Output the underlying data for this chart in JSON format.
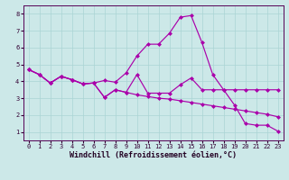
{
  "xlabel": "Windchill (Refroidissement éolien,°C)",
  "background_color": "#cce8e8",
  "grid_color": "#aad4d4",
  "line_color": "#aa00aa",
  "xlim": [
    -0.5,
    23.5
  ],
  "ylim": [
    0.5,
    8.5
  ],
  "xticks": [
    0,
    1,
    2,
    3,
    4,
    5,
    6,
    7,
    8,
    9,
    10,
    11,
    12,
    13,
    14,
    15,
    16,
    17,
    18,
    19,
    20,
    21,
    22,
    23
  ],
  "yticks": [
    1,
    2,
    3,
    4,
    5,
    6,
    7,
    8
  ],
  "series": [
    [
      4.7,
      4.4,
      3.9,
      4.3,
      4.1,
      3.85,
      3.9,
      3.05,
      3.5,
      3.35,
      3.2,
      3.1,
      3.0,
      2.95,
      2.85,
      2.75,
      2.65,
      2.55,
      2.45,
      2.35,
      2.25,
      2.15,
      2.05,
      1.9
    ],
    [
      4.7,
      4.4,
      3.9,
      4.3,
      4.1,
      3.85,
      3.9,
      4.05,
      3.95,
      4.5,
      5.5,
      6.2,
      6.2,
      6.85,
      7.8,
      7.9,
      6.3,
      4.4,
      3.5,
      2.6,
      1.5,
      1.4,
      1.4,
      1.05
    ],
    [
      4.7,
      4.4,
      3.9,
      4.3,
      4.1,
      3.85,
      3.9,
      3.05,
      3.5,
      3.35,
      4.4,
      3.3,
      3.3,
      3.3,
      3.8,
      4.2,
      3.5,
      3.5,
      3.5,
      3.5,
      3.5,
      3.5,
      3.5,
      3.5
    ]
  ],
  "marker": "D",
  "markersize": 2.0,
  "linewidth": 0.85,
  "tick_fontsize": 5.0,
  "xlabel_fontsize": 6.0
}
